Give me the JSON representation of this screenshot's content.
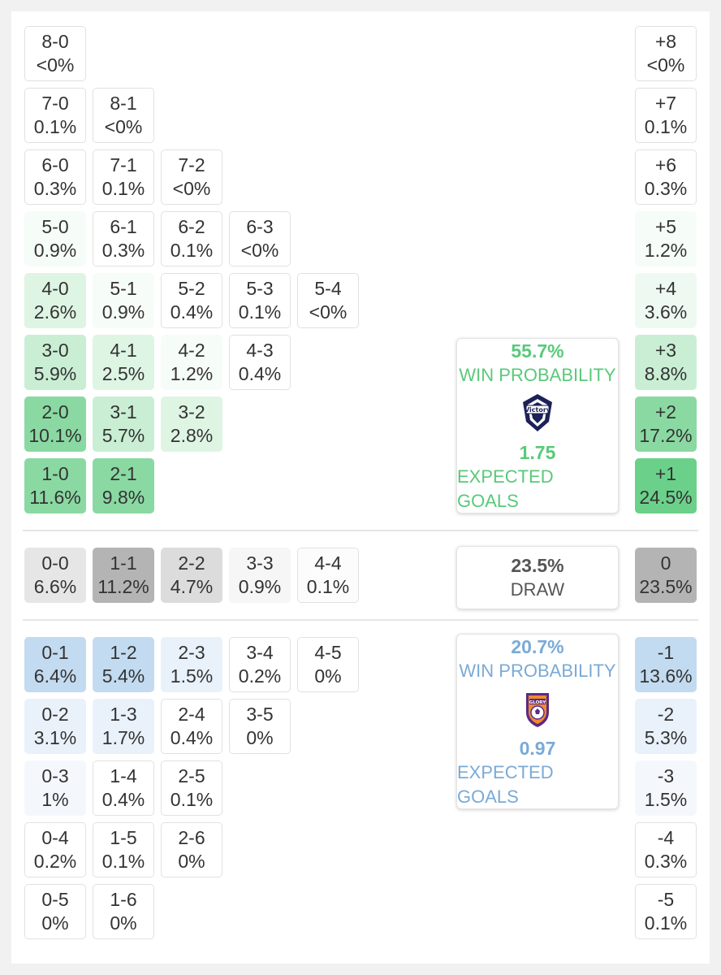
{
  "colors": {
    "home_text": "#59c97a",
    "away_text": "#7aaad6",
    "draw_text": "#555555",
    "home_shades": [
      "#ffffff",
      "#f6fcf7",
      "#eefaf1",
      "#def5e4",
      "#c9eed4",
      "#a6e3b9",
      "#8ad9a2",
      "#6bd18a"
    ],
    "draw_shades": [
      "#fcfcfc",
      "#f6f6f6",
      "#e6e6e6",
      "#dcdcdc",
      "#b4b4b4"
    ],
    "away_shades": [
      "#ffffff",
      "#f4f8fd",
      "#e9f1fa",
      "#d6e6f5",
      "#c3dbf0"
    ]
  },
  "home_scores": [
    [
      {
        "s": "8-0",
        "p": "<0%",
        "sh": 0
      },
      {
        "s": "7-0",
        "p": "0.1%",
        "sh": 0
      },
      {
        "s": "6-0",
        "p": "0.3%",
        "sh": 0
      },
      {
        "s": "5-0",
        "p": "0.9%",
        "sh": 1
      },
      {
        "s": "4-0",
        "p": "2.6%",
        "sh": 3
      },
      {
        "s": "3-0",
        "p": "5.9%",
        "sh": 4
      },
      {
        "s": "2-0",
        "p": "10.1%",
        "sh": 6
      },
      {
        "s": "1-0",
        "p": "11.6%",
        "sh": 6
      }
    ],
    [
      {
        "s": "8-1",
        "p": "<0%",
        "sh": 0
      },
      {
        "s": "7-1",
        "p": "0.1%",
        "sh": 0
      },
      {
        "s": "6-1",
        "p": "0.3%",
        "sh": 0
      },
      {
        "s": "5-1",
        "p": "0.9%",
        "sh": 1
      },
      {
        "s": "4-1",
        "p": "2.5%",
        "sh": 3
      },
      {
        "s": "3-1",
        "p": "5.7%",
        "sh": 4
      },
      {
        "s": "2-1",
        "p": "9.8%",
        "sh": 6
      }
    ],
    [
      {
        "s": "7-2",
        "p": "<0%",
        "sh": 0
      },
      {
        "s": "6-2",
        "p": "0.1%",
        "sh": 0
      },
      {
        "s": "5-2",
        "p": "0.4%",
        "sh": 0
      },
      {
        "s": "4-2",
        "p": "1.2%",
        "sh": 1
      },
      {
        "s": "3-2",
        "p": "2.8%",
        "sh": 3
      }
    ],
    [
      {
        "s": "6-3",
        "p": "<0%",
        "sh": 0
      },
      {
        "s": "5-3",
        "p": "0.1%",
        "sh": 0
      },
      {
        "s": "4-3",
        "p": "0.4%",
        "sh": 0
      }
    ],
    [
      {
        "s": "5-4",
        "p": "<0%",
        "sh": 0
      }
    ]
  ],
  "draw_scores": [
    {
      "s": "0-0",
      "p": "6.6%",
      "sh": 2
    },
    {
      "s": "1-1",
      "p": "11.2%",
      "sh": 4
    },
    {
      "s": "2-2",
      "p": "4.7%",
      "sh": 3
    },
    {
      "s": "3-3",
      "p": "0.9%",
      "sh": 1
    },
    {
      "s": "4-4",
      "p": "0.1%",
      "sh": 0
    }
  ],
  "away_scores": [
    [
      {
        "s": "0-1",
        "p": "6.4%",
        "sh": 4
      },
      {
        "s": "0-2",
        "p": "3.1%",
        "sh": 2
      },
      {
        "s": "0-3",
        "p": "1%",
        "sh": 1
      },
      {
        "s": "0-4",
        "p": "0.2%",
        "sh": 0
      },
      {
        "s": "0-5",
        "p": "0%",
        "sh": 0
      }
    ],
    [
      {
        "s": "1-2",
        "p": "5.4%",
        "sh": 4
      },
      {
        "s": "1-3",
        "p": "1.7%",
        "sh": 2
      },
      {
        "s": "1-4",
        "p": "0.4%",
        "sh": 0
      },
      {
        "s": "1-5",
        "p": "0.1%",
        "sh": 0
      },
      {
        "s": "1-6",
        "p": "0%",
        "sh": 0
      }
    ],
    [
      {
        "s": "2-3",
        "p": "1.5%",
        "sh": 2
      },
      {
        "s": "2-4",
        "p": "0.4%",
        "sh": 0
      },
      {
        "s": "2-5",
        "p": "0.1%",
        "sh": 0
      },
      {
        "s": "2-6",
        "p": "0%",
        "sh": 0
      }
    ],
    [
      {
        "s": "3-4",
        "p": "0.2%",
        "sh": 0
      },
      {
        "s": "3-5",
        "p": "0%",
        "sh": 0
      }
    ],
    [
      {
        "s": "4-5",
        "p": "0%",
        "sh": 0
      }
    ]
  ],
  "margins_home": [
    {
      "s": "+8",
      "p": "<0%",
      "sh": 0
    },
    {
      "s": "+7",
      "p": "0.1%",
      "sh": 0
    },
    {
      "s": "+6",
      "p": "0.3%",
      "sh": 0
    },
    {
      "s": "+5",
      "p": "1.2%",
      "sh": 1
    },
    {
      "s": "+4",
      "p": "3.6%",
      "sh": 2
    },
    {
      "s": "+3",
      "p": "8.8%",
      "sh": 4
    },
    {
      "s": "+2",
      "p": "17.2%",
      "sh": 6
    },
    {
      "s": "+1",
      "p": "24.5%",
      "sh": 7
    }
  ],
  "margin_draw": {
    "s": "0",
    "p": "23.5%",
    "sh": 4
  },
  "margins_away": [
    {
      "s": "-1",
      "p": "13.6%",
      "sh": 4
    },
    {
      "s": "-2",
      "p": "5.3%",
      "sh": 2
    },
    {
      "s": "-3",
      "p": "1.5%",
      "sh": 1
    },
    {
      "s": "-4",
      "p": "0.3%",
      "sh": 0
    },
    {
      "s": "-5",
      "p": "0.1%",
      "sh": 0
    }
  ],
  "home_box": {
    "win_pct": "55.7%",
    "win_label": "WIN PROBABILITY",
    "xg": "1.75",
    "xg_label": "EXPECTED GOALS",
    "logo_text": "Victory"
  },
  "draw_box": {
    "pct": "23.5%",
    "label": "DRAW"
  },
  "away_box": {
    "win_pct": "20.7%",
    "win_label": "WIN PROBABILITY",
    "xg": "0.97",
    "xg_label": "EXPECTED GOALS",
    "logo_text": "GLORY"
  },
  "chart_data": {
    "type": "heatmap",
    "title": "",
    "home_win_probability": 55.7,
    "draw_probability": 23.5,
    "away_win_probability": 20.7,
    "home_expected_goals": 1.75,
    "away_expected_goals": 0.97,
    "scoreline_probabilities_pct": {
      "8-0": 0,
      "7-0": 0.1,
      "6-0": 0.3,
      "5-0": 0.9,
      "4-0": 2.6,
      "3-0": 5.9,
      "2-0": 10.1,
      "1-0": 11.6,
      "8-1": 0,
      "7-1": 0.1,
      "6-1": 0.3,
      "5-1": 0.9,
      "4-1": 2.5,
      "3-1": 5.7,
      "2-1": 9.8,
      "7-2": 0,
      "6-2": 0.1,
      "5-2": 0.4,
      "4-2": 1.2,
      "3-2": 2.8,
      "6-3": 0,
      "5-3": 0.1,
      "4-3": 0.4,
      "5-4": 0,
      "0-0": 6.6,
      "1-1": 11.2,
      "2-2": 4.7,
      "3-3": 0.9,
      "4-4": 0.1,
      "0-1": 6.4,
      "0-2": 3.1,
      "0-3": 1,
      "0-4": 0.2,
      "0-5": 0,
      "1-2": 5.4,
      "1-3": 1.7,
      "1-4": 0.4,
      "1-5": 0.1,
      "1-6": 0,
      "2-3": 1.5,
      "2-4": 0.4,
      "2-5": 0.1,
      "2-6": 0,
      "3-4": 0.2,
      "3-5": 0,
      "4-5": 0
    },
    "margin_probabilities_pct": {
      "+8": 0,
      "+7": 0.1,
      "+6": 0.3,
      "+5": 1.2,
      "+4": 3.6,
      "+3": 8.8,
      "+2": 17.2,
      "+1": 24.5,
      "0": 23.5,
      "-1": 13.6,
      "-2": 5.3,
      "-3": 1.5,
      "-4": 0.3,
      "-5": 0.1
    }
  }
}
